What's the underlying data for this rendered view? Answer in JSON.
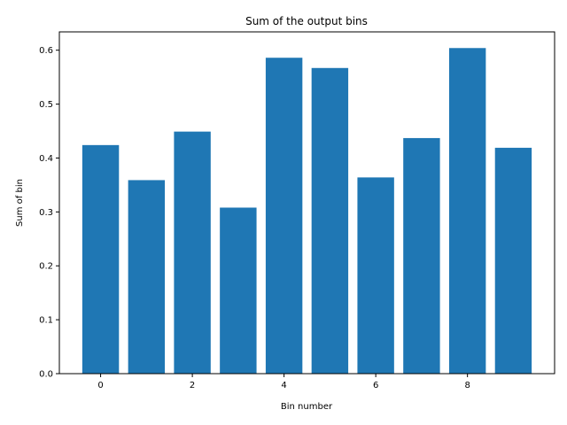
{
  "chart_data": {
    "type": "bar",
    "title": "Sum of the output bins",
    "xlabel": "Bin number",
    "ylabel": "Sum of bin",
    "x": [
      0,
      1,
      2,
      3,
      4,
      5,
      6,
      7,
      8,
      9
    ],
    "values": [
      0.424,
      0.359,
      0.449,
      0.308,
      0.586,
      0.567,
      0.364,
      0.437,
      0.604,
      0.419
    ],
    "xlim": [
      -0.9,
      9.9
    ],
    "ylim": [
      0,
      0.634
    ],
    "xticks": [
      "0",
      "2",
      "4",
      "6",
      "8"
    ],
    "yticks": [
      "0.0",
      "0.1",
      "0.2",
      "0.3",
      "0.4",
      "0.5",
      "0.6"
    ],
    "bar_color": "#1f77b4",
    "grid": false,
    "legend": "none"
  }
}
